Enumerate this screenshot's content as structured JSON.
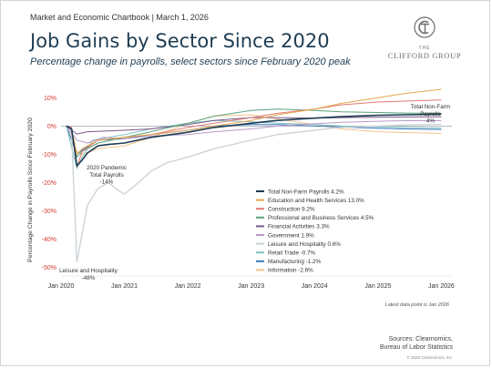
{
  "header": {
    "supertitle": "Market and Economic Chartbook | March 1, 2026",
    "title": "Job Gains by Sector Since 2020",
    "subtitle": "Percentage change in payrolls, select sectors since February 2020 peak"
  },
  "logo": {
    "the": "THE",
    "name": "CLIFFORD GROUP"
  },
  "footer": {
    "note": "Latest data point is Jan 2026",
    "sources_line1": "Sources: Clearnomics,",
    "sources_line2": "Bureau of Labor Statistics",
    "copyright": "© 2026 Clearnomics, Inc."
  },
  "chart_data": {
    "type": "line",
    "ylabel": "Percentage Change in Payrolls Since February 2020",
    "x_ticks": [
      "Jan 2020",
      "Jan 2021",
      "Jan 2022",
      "Jan 2023",
      "Jan 2024",
      "Jan 2025",
      "Jan 2026"
    ],
    "y_ticks": [
      10,
      0,
      -10,
      -20,
      -30,
      -40,
      -50
    ],
    "y_tick_labels": [
      "10%",
      "0%",
      "-10%",
      "-20%",
      "-30%",
      "-40%",
      "-50%"
    ],
    "xlim": [
      "2020-01",
      "2026-03"
    ],
    "ylim": [
      -53,
      13
    ],
    "grid": false,
    "legend_position": "center-right",
    "annotations": [
      {
        "label_lines": [
          "Total Non-Farm",
          "Payrolls",
          "4%"
        ],
        "x": "2026-01",
        "y": 4.2
      },
      {
        "label_lines": [
          "2020 Pandemic",
          "Total Payrolls",
          "-14%"
        ],
        "x": "2020-04",
        "y": -14
      },
      {
        "label_lines": [
          "Leisure and Hospitality",
          "-48%"
        ],
        "x": "2020-04",
        "y": -48
      }
    ],
    "series": [
      {
        "name": "Total Non-Farm Payrolls 4.2%",
        "color": "#1f3d53",
        "width": 1.6,
        "points": [
          [
            "2020-02",
            0
          ],
          [
            "2020-03",
            -1
          ],
          [
            "2020-04",
            -14
          ],
          [
            "2020-05",
            -12
          ],
          [
            "2020-06",
            -9.5
          ],
          [
            "2020-08",
            -7
          ],
          [
            "2020-10",
            -6.5
          ],
          [
            "2021-01",
            -6
          ],
          [
            "2021-06",
            -4
          ],
          [
            "2022-01",
            -2.2
          ],
          [
            "2022-06",
            -0.5
          ],
          [
            "2023-01",
            1
          ],
          [
            "2023-06",
            2
          ],
          [
            "2024-01",
            2.8
          ],
          [
            "2024-06",
            3.3
          ],
          [
            "2025-01",
            3.8
          ],
          [
            "2025-06",
            4
          ],
          [
            "2026-01",
            4.2
          ]
        ]
      },
      {
        "name": "Education and Health Services 13.0%",
        "color": "#e8a64c",
        "width": 1,
        "points": [
          [
            "2020-02",
            0
          ],
          [
            "2020-03",
            -1
          ],
          [
            "2020-04",
            -10
          ],
          [
            "2020-05",
            -8
          ],
          [
            "2020-08",
            -5
          ],
          [
            "2021-01",
            -4
          ],
          [
            "2021-06",
            -3
          ],
          [
            "2022-01",
            -1.5
          ],
          [
            "2022-06",
            0
          ],
          [
            "2023-01",
            2
          ],
          [
            "2023-06",
            4
          ],
          [
            "2024-01",
            6
          ],
          [
            "2024-06",
            8
          ],
          [
            "2025-01",
            10
          ],
          [
            "2025-06",
            11.5
          ],
          [
            "2026-01",
            13
          ]
        ]
      },
      {
        "name": "Construction 9.2%",
        "color": "#e07a73",
        "width": 1,
        "points": [
          [
            "2020-02",
            0
          ],
          [
            "2020-03",
            -0.5
          ],
          [
            "2020-04",
            -14.5
          ],
          [
            "2020-05",
            -9
          ],
          [
            "2020-08",
            -5
          ],
          [
            "2021-01",
            -4
          ],
          [
            "2021-06",
            -3
          ],
          [
            "2022-01",
            -0.5
          ],
          [
            "2022-06",
            1
          ],
          [
            "2023-01",
            3
          ],
          [
            "2023-06",
            4.5
          ],
          [
            "2024-01",
            6
          ],
          [
            "2024-06",
            7.5
          ],
          [
            "2025-01",
            8.5
          ],
          [
            "2025-06",
            8.8
          ],
          [
            "2026-01",
            9.2
          ]
        ]
      },
      {
        "name": "Professional and Business Services 4.5%",
        "color": "#5ba27c",
        "width": 1,
        "points": [
          [
            "2020-02",
            0
          ],
          [
            "2020-03",
            -1
          ],
          [
            "2020-04",
            -11
          ],
          [
            "2020-05",
            -9
          ],
          [
            "2020-08",
            -6
          ],
          [
            "2021-01",
            -4
          ],
          [
            "2021-06",
            -2
          ],
          [
            "2022-01",
            1
          ],
          [
            "2022-06",
            3.5
          ],
          [
            "2023-01",
            5.5
          ],
          [
            "2023-06",
            6
          ],
          [
            "2024-01",
            5.5
          ],
          [
            "2024-06",
            5
          ],
          [
            "2025-01",
            4.8
          ],
          [
            "2025-06",
            4.6
          ],
          [
            "2026-01",
            4.5
          ]
        ]
      },
      {
        "name": "Financial Activities 3.3%",
        "color": "#7a5a88",
        "width": 1,
        "points": [
          [
            "2020-02",
            0
          ],
          [
            "2020-04",
            -2.8
          ],
          [
            "2020-06",
            -2
          ],
          [
            "2021-01",
            -1.5
          ],
          [
            "2021-06",
            -1
          ],
          [
            "2022-01",
            0.5
          ],
          [
            "2022-06",
            2
          ],
          [
            "2023-01",
            3
          ],
          [
            "2023-06",
            3
          ],
          [
            "2024-01",
            2.8
          ],
          [
            "2024-06",
            3
          ],
          [
            "2025-01",
            3.1
          ],
          [
            "2025-06",
            3.2
          ],
          [
            "2026-01",
            3.3
          ]
        ]
      },
      {
        "name": "Government 1.9%",
        "color": "#b89ac8",
        "width": 1,
        "points": [
          [
            "2020-02",
            0
          ],
          [
            "2020-04",
            -5
          ],
          [
            "2020-06",
            -6
          ],
          [
            "2020-09",
            -4
          ],
          [
            "2021-01",
            -4.5
          ],
          [
            "2021-06",
            -3.5
          ],
          [
            "2022-01",
            -3
          ],
          [
            "2022-06",
            -2
          ],
          [
            "2023-01",
            -1
          ],
          [
            "2023-06",
            0
          ],
          [
            "2024-01",
            0.8
          ],
          [
            "2024-06",
            1.3
          ],
          [
            "2025-01",
            1.7
          ],
          [
            "2025-06",
            1.9
          ],
          [
            "2026-01",
            1.9
          ]
        ]
      },
      {
        "name": "Leisure and Hospitality 0.6%",
        "color": "#c9d1d6",
        "width": 1.3,
        "points": [
          [
            "2020-02",
            0
          ],
          [
            "2020-03",
            -3
          ],
          [
            "2020-04",
            -48
          ],
          [
            "2020-05",
            -38
          ],
          [
            "2020-06",
            -28
          ],
          [
            "2020-08",
            -22
          ],
          [
            "2020-10",
            -20
          ],
          [
            "2020-12",
            -23
          ],
          [
            "2021-01",
            -24
          ],
          [
            "2021-03",
            -21
          ],
          [
            "2021-06",
            -16
          ],
          [
            "2021-09",
            -13
          ],
          [
            "2022-01",
            -11
          ],
          [
            "2022-06",
            -8
          ],
          [
            "2023-01",
            -5
          ],
          [
            "2023-06",
            -3
          ],
          [
            "2024-01",
            -1.5
          ],
          [
            "2024-06",
            -0.5
          ],
          [
            "2025-01",
            0
          ],
          [
            "2025-06",
            0.4
          ],
          [
            "2026-01",
            0.6
          ]
        ]
      },
      {
        "name": "Retail Trade -0.7%",
        "color": "#7ec3c3",
        "width": 1,
        "points": [
          [
            "2020-02",
            0
          ],
          [
            "2020-04",
            -15
          ],
          [
            "2020-05",
            -11
          ],
          [
            "2020-07",
            -5
          ],
          [
            "2021-01",
            -3
          ],
          [
            "2021-06",
            -1
          ],
          [
            "2022-01",
            1
          ],
          [
            "2022-06",
            2
          ],
          [
            "2023-01",
            1.5
          ],
          [
            "2023-06",
            1
          ],
          [
            "2024-01",
            0.5
          ],
          [
            "2024-06",
            0
          ],
          [
            "2025-01",
            -0.3
          ],
          [
            "2025-06",
            -0.5
          ],
          [
            "2026-01",
            -0.7
          ]
        ]
      },
      {
        "name": "Manufacturing -1.2%",
        "color": "#3a78b8",
        "width": 1,
        "points": [
          [
            "2020-02",
            0
          ],
          [
            "2020-04",
            -10
          ],
          [
            "2020-05",
            -8.5
          ],
          [
            "2020-08",
            -5
          ],
          [
            "2021-01",
            -4.5
          ],
          [
            "2021-06",
            -3
          ],
          [
            "2022-01",
            -1.5
          ],
          [
            "2022-06",
            0
          ],
          [
            "2023-01",
            0.5
          ],
          [
            "2023-06",
            0.5
          ],
          [
            "2024-01",
            0
          ],
          [
            "2024-06",
            -0.3
          ],
          [
            "2025-01",
            -0.8
          ],
          [
            "2025-06",
            -1
          ],
          [
            "2026-01",
            -1.2
          ]
        ]
      },
      {
        "name": "Information -2.6%",
        "color": "#f2c48d",
        "width": 1,
        "points": [
          [
            "2020-02",
            0
          ],
          [
            "2020-04",
            -9
          ],
          [
            "2020-05",
            -10
          ],
          [
            "2020-08",
            -8
          ],
          [
            "2021-01",
            -7
          ],
          [
            "2021-06",
            -4
          ],
          [
            "2022-01",
            1
          ],
          [
            "2022-06",
            3.5
          ],
          [
            "2023-01",
            4
          ],
          [
            "2023-06",
            2.5
          ],
          [
            "2024-01",
            0.5
          ],
          [
            "2024-06",
            -1
          ],
          [
            "2025-01",
            -2
          ],
          [
            "2025-06",
            -2.3
          ],
          [
            "2026-01",
            -2.6
          ]
        ]
      }
    ]
  }
}
